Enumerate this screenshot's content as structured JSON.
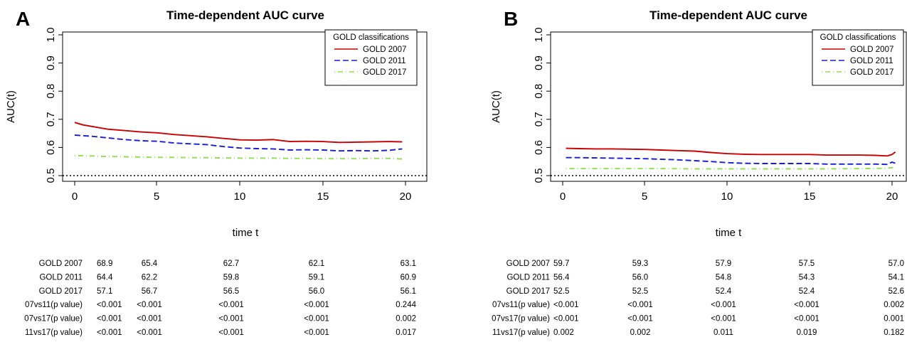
{
  "chart_data": [
    {
      "type": "line",
      "panel_label": "A",
      "title": "Time-dependent AUC curve",
      "xlabel": "time t",
      "ylabel": "AUC(t)",
      "xlim": [
        0,
        20
      ],
      "ylim": [
        0.5,
        1.0
      ],
      "x_ticks": [
        "0",
        "5",
        "10",
        "15",
        "20"
      ],
      "y_ticks": [
        "0.5",
        "0.6",
        "0.7",
        "0.8",
        "0.9",
        "1.0"
      ],
      "reference_line": 0.5,
      "legend": {
        "title": "GOLD classifications",
        "position": "top-right"
      },
      "series": [
        {
          "name": "GOLD 2007",
          "color": "#cc0000",
          "style": "solid",
          "x": [
            0,
            0.5,
            1,
            2,
            3,
            4,
            5,
            6,
            7,
            8,
            9,
            10,
            11,
            12,
            13,
            14,
            15,
            16,
            17,
            18,
            19,
            19.8
          ],
          "y": [
            0.689,
            0.68,
            0.675,
            0.665,
            0.66,
            0.655,
            0.652,
            0.646,
            0.642,
            0.638,
            0.632,
            0.627,
            0.626,
            0.628,
            0.621,
            0.622,
            0.621,
            0.618,
            0.619,
            0.62,
            0.621,
            0.62
          ]
        },
        {
          "name": "GOLD 2011",
          "color": "#1a1adb",
          "style": "dashed",
          "x": [
            0,
            0.5,
            1,
            2,
            3,
            4,
            5,
            6,
            7,
            8,
            9,
            10,
            11,
            12,
            13,
            14,
            15,
            16,
            17,
            18,
            19,
            19.8
          ],
          "y": [
            0.644,
            0.642,
            0.64,
            0.634,
            0.628,
            0.624,
            0.622,
            0.616,
            0.613,
            0.61,
            0.603,
            0.598,
            0.596,
            0.595,
            0.591,
            0.592,
            0.591,
            0.588,
            0.589,
            0.588,
            0.59,
            0.595
          ]
        },
        {
          "name": "GOLD 2017",
          "color": "#8ee04a",
          "style": "dotdash",
          "x": [
            0,
            1,
            2,
            3,
            4,
            5,
            6,
            7,
            8,
            9,
            10,
            11,
            12,
            13,
            14,
            15,
            16,
            17,
            18,
            19,
            19.8
          ],
          "y": [
            0.571,
            0.57,
            0.568,
            0.567,
            0.566,
            0.565,
            0.565,
            0.564,
            0.564,
            0.563,
            0.562,
            0.562,
            0.562,
            0.561,
            0.561,
            0.56,
            0.56,
            0.56,
            0.561,
            0.561,
            0.559
          ]
        }
      ],
      "table": {
        "rows": [
          {
            "label": "GOLD 2007",
            "values": [
              "68.9",
              "65.4",
              "62.7",
              "62.1",
              "63.1"
            ]
          },
          {
            "label": "GOLD 2011",
            "values": [
              "64.4",
              "62.2",
              "59.8",
              "59.1",
              "60.9"
            ]
          },
          {
            "label": "GOLD 2017",
            "values": [
              "57.1",
              "56.7",
              "56.5",
              "56.0",
              "56.1"
            ]
          },
          {
            "label": "07vs11(p value)",
            "values": [
              "<0.001",
              "<0.001",
              "<0.001",
              "<0.001",
              "0.244"
            ]
          },
          {
            "label": "07vs17(p value)",
            "values": [
              "<0.001",
              "<0.001",
              "<0.001",
              "<0.001",
              "0.002"
            ]
          },
          {
            "label": "11vs17(p value)",
            "values": [
              "<0.001",
              "<0.001",
              "<0.001",
              "<0.001",
              "0.017"
            ]
          }
        ]
      }
    },
    {
      "type": "line",
      "panel_label": "B",
      "title": "Time-dependent AUC curve",
      "xlabel": "time t",
      "ylabel": "AUC(t)",
      "xlim": [
        0,
        20
      ],
      "ylim": [
        0.5,
        1.0
      ],
      "x_ticks": [
        "0",
        "5",
        "10",
        "15",
        "20"
      ],
      "y_ticks": [
        "0.5",
        "0.6",
        "0.7",
        "0.8",
        "0.9",
        "1.0"
      ],
      "reference_line": 0.5,
      "legend": {
        "title": "GOLD classifications",
        "position": "top-right"
      },
      "series": [
        {
          "name": "GOLD 2007",
          "color": "#cc0000",
          "style": "solid",
          "x": [
            0.2,
            1,
            2,
            3,
            4,
            5,
            6,
            7,
            8,
            9,
            10,
            11,
            12,
            13,
            14,
            15,
            16,
            17,
            18,
            19,
            19.7,
            20,
            20.2
          ],
          "y": [
            0.597,
            0.596,
            0.595,
            0.595,
            0.594,
            0.593,
            0.591,
            0.589,
            0.587,
            0.582,
            0.578,
            0.576,
            0.575,
            0.575,
            0.575,
            0.575,
            0.573,
            0.573,
            0.573,
            0.572,
            0.57,
            0.575,
            0.584
          ]
        },
        {
          "name": "GOLD 2011",
          "color": "#1a1adb",
          "style": "dashed",
          "x": [
            0.2,
            1,
            2,
            3,
            4,
            5,
            6,
            7,
            8,
            9,
            10,
            11,
            12,
            13,
            14,
            15,
            16,
            17,
            18,
            19,
            19.7,
            20,
            20.2
          ],
          "y": [
            0.564,
            0.564,
            0.563,
            0.562,
            0.561,
            0.56,
            0.558,
            0.556,
            0.553,
            0.55,
            0.546,
            0.544,
            0.543,
            0.543,
            0.543,
            0.543,
            0.541,
            0.541,
            0.541,
            0.541,
            0.54,
            0.548,
            0.544
          ]
        },
        {
          "name": "GOLD 2017",
          "color": "#8ee04a",
          "style": "dotdash",
          "x": [
            0.2,
            2,
            4,
            6,
            8,
            10,
            12,
            14,
            16,
            18,
            19.7,
            20.2
          ],
          "y": [
            0.525,
            0.525,
            0.525,
            0.525,
            0.524,
            0.524,
            0.524,
            0.524,
            0.524,
            0.525,
            0.526,
            0.53
          ]
        }
      ],
      "table": {
        "rows": [
          {
            "label": "GOLD 2007",
            "values": [
              "59.7",
              "59.3",
              "57.9",
              "57.5",
              "57.0"
            ]
          },
          {
            "label": "GOLD 2011",
            "values": [
              "56.4",
              "56.0",
              "54.8",
              "54.3",
              "54.1"
            ]
          },
          {
            "label": "GOLD 2017",
            "values": [
              "52.5",
              "52.5",
              "52.4",
              "52.4",
              "52.6"
            ]
          },
          {
            "label": "07vs11(p value)",
            "values": [
              "<0.001",
              "<0.001",
              "<0.001",
              "<0.001",
              "0.002"
            ]
          },
          {
            "label": "07vs17(p value)",
            "values": [
              "<0.001",
              "<0.001",
              "<0.001",
              "<0.001",
              "0.001"
            ]
          },
          {
            "label": "11vs17(p value)",
            "values": [
              "0.002",
              "0.002",
              "0.011",
              "0.019",
              "0.182"
            ]
          }
        ]
      }
    }
  ]
}
